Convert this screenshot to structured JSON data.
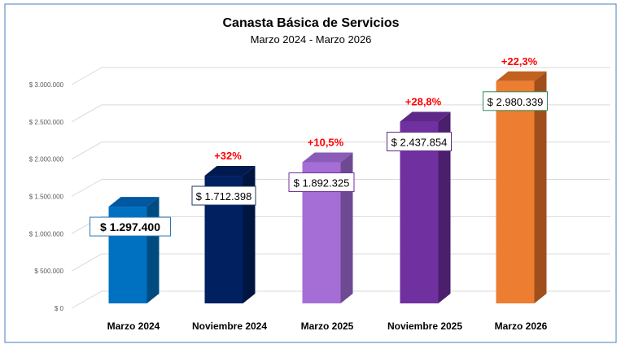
{
  "chart_data": {
    "type": "bar",
    "title": "Canasta Básica de Servicios",
    "subtitle": "Marzo 2024 - Marzo 2026",
    "categories": [
      "Marzo 2024",
      "Noviembre 2024",
      "Marzo 2025",
      "Noviembre 2025",
      "Marzo 2026"
    ],
    "values": [
      1297400,
      1712398,
      1892325,
      2437854,
      2980339
    ],
    "data_labels": [
      "$ 1.297.400",
      "$ 1.712.398",
      "$ 1.892.325",
      "$ 2.437.854",
      "$ 2.980.339"
    ],
    "change_labels": [
      "",
      "+32%",
      "+10,5%",
      "+28,8%",
      "+22,3%"
    ],
    "y_ticks": [
      0,
      500000,
      1000000,
      1500000,
      2000000,
      2500000,
      3000000
    ],
    "y_tick_labels": [
      "$ 0",
      "$ 500.000",
      "$ 1.000.000",
      "$ 1.500.000",
      "$ 2.000.000",
      "$ 2.500.000",
      "$ 3.000.000"
    ],
    "ylim": [
      0,
      3000000
    ],
    "grid": true,
    "style": "3d-column",
    "colors": {
      "front": [
        "#0070C0",
        "#002060",
        "#A46ED6",
        "#7030A0",
        "#ED7D31"
      ],
      "side": [
        "#004B80",
        "#00153F",
        "#6E4A92",
        "#4B1F6C",
        "#A04F1C"
      ],
      "top": [
        "#0058A0",
        "#001A50",
        "#8A5CB8",
        "#5E2888",
        "#C2621F"
      ],
      "label_border": [
        "#2E75B6",
        "#1F3864",
        "#7030A0",
        "#5B2C85",
        "#2E8B57"
      ],
      "change_text": "#FF0000",
      "frame": "#4A7EBB"
    }
  }
}
